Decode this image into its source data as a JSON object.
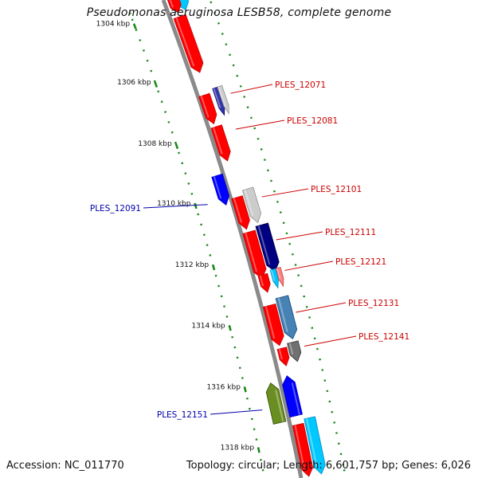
{
  "title": "Pseudomonas aeruginosa LESB58, complete genome",
  "accession_label": "Accession: NC_011770",
  "topology_label": "Topology: circular; Length: 6,601,757 bp; Genes: 6,026",
  "colors": {
    "backbone": "#8a8a8a",
    "ticks": "#1a8a1a",
    "forward_label": "#cc0000",
    "reverse_label": "#0000aa"
  },
  "scale_ticks": [
    {
      "label": "1304 kbp",
      "kbp": 1304
    },
    {
      "label": "1306 kbp",
      "kbp": 1306
    },
    {
      "label": "1308 kbp",
      "kbp": 1308
    },
    {
      "label": "1310 kbp",
      "kbp": 1310
    },
    {
      "label": "1312 kbp",
      "kbp": 1312
    },
    {
      "label": "1314 kbp",
      "kbp": 1314
    },
    {
      "label": "1316 kbp",
      "kbp": 1316
    },
    {
      "label": "1318 kbp",
      "kbp": 1318
    }
  ],
  "gene_labels": [
    {
      "name": "PLES_12071",
      "strand": "forward"
    },
    {
      "name": "PLES_12081",
      "strand": "forward"
    },
    {
      "name": "PLES_12091",
      "strand": "reverse"
    },
    {
      "name": "PLES_12101",
      "strand": "forward"
    },
    {
      "name": "PLES_12111",
      "strand": "forward"
    },
    {
      "name": "PLES_12121",
      "strand": "forward"
    },
    {
      "name": "PLES_12131",
      "strand": "forward"
    },
    {
      "name": "PLES_12141",
      "strand": "forward"
    },
    {
      "name": "PLES_12151",
      "strand": "reverse"
    }
  ]
}
